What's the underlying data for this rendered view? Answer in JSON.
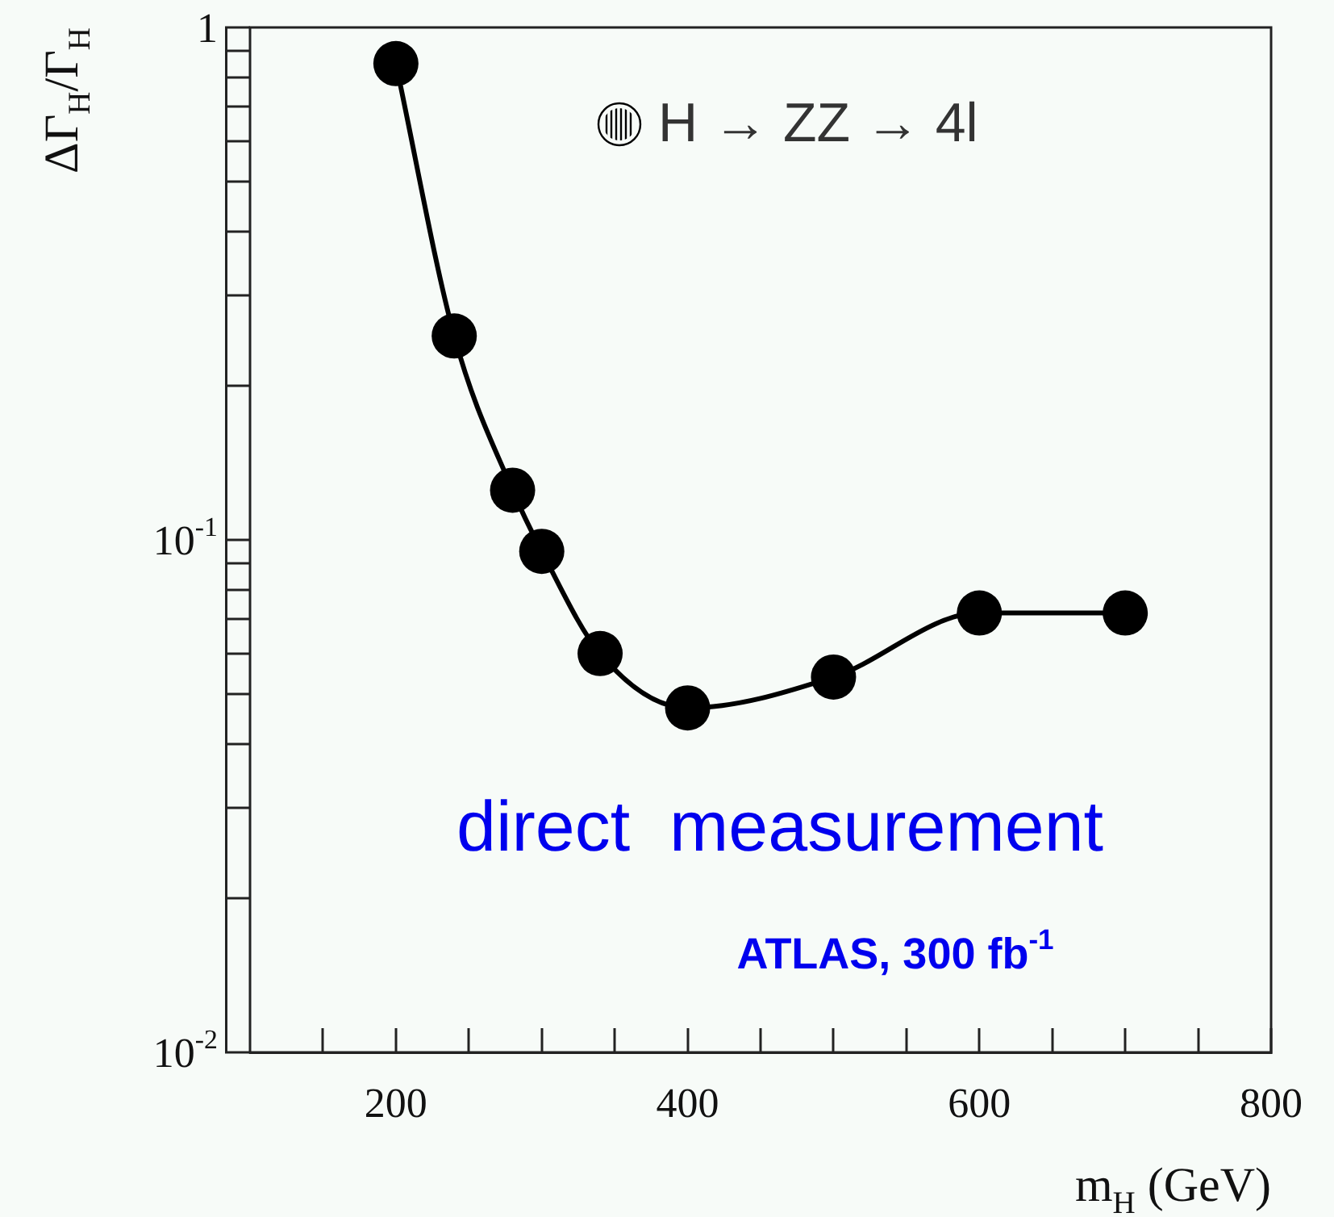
{
  "chart_data": {
    "type": "line",
    "xlabel": "m$_{H}$ (GeV)",
    "ylabel": "ΔΓ$_{H}$/Γ$_{H}$",
    "x": [
      200,
      240,
      280,
      300,
      340,
      400,
      500,
      600,
      700
    ],
    "series": [
      {
        "name": "H → ZZ → 4l",
        "color": "#000000",
        "values": [
          0.85,
          0.25,
          0.125,
          0.095,
          0.06,
          0.047,
          0.054,
          0.072,
          0.072
        ]
      }
    ],
    "xlim": [
      100,
      800
    ],
    "xticks": [
      {
        "value": 150,
        "label": null
      },
      200,
      {
        "value": 250,
        "label": null
      },
      {
        "value": 300,
        "label": null
      },
      {
        "value": 350,
        "label": null
      },
      400,
      {
        "value": 450,
        "label": null
      },
      {
        "value": 500,
        "label": null
      },
      {
        "value": 550,
        "label": null
      },
      600,
      {
        "value": 650,
        "label": null
      },
      {
        "value": 700,
        "label": null
      },
      {
        "value": 750,
        "label": null
      },
      800
    ],
    "ylim": [
      0.01,
      1
    ],
    "yticks": [
      {
        "value": 0.01,
        "label": "10$^{-2}$"
      },
      {
        "value": 0.02,
        "label": null
      },
      {
        "value": 0.03,
        "label": null
      },
      {
        "value": 0.04,
        "label": null
      },
      {
        "value": 0.05,
        "label": null
      },
      {
        "value": 0.06,
        "label": null
      },
      {
        "value": 0.07,
        "label": null
      },
      {
        "value": 0.08,
        "label": null
      },
      {
        "value": 0.09,
        "label": null
      },
      {
        "value": 0.1,
        "label": "10$^{-1}$"
      },
      {
        "value": 0.2,
        "label": null
      },
      {
        "value": 0.3,
        "label": null
      },
      {
        "value": 0.4,
        "label": null
      },
      {
        "value": 0.5,
        "label": null
      },
      {
        "value": 0.6,
        "label": null
      },
      {
        "value": 0.7,
        "label": null
      },
      {
        "value": 0.8,
        "label": null
      },
      {
        "value": 0.9,
        "label": null
      },
      1
    ],
    "log": "y",
    "grid": false,
    "marker": "circle",
    "line_style": "solid",
    "legend": "top right",
    "annotations": [
      "direct  measurement",
      "ATLAS, 300 fb$^{-1}$"
    ]
  }
}
